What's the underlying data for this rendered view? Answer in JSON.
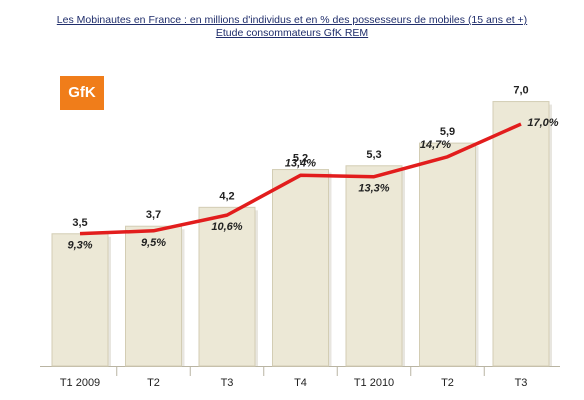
{
  "title_line1": "Les Mobinautes en France : en millions d'individus et en % des possesseurs de mobiles (15 ans et +)",
  "title_line2": "Etude consommateurs GfK REM",
  "logo_text": "GfK",
  "colors": {
    "bar_fill": "#ece8d6",
    "bar_edge": "#d3cdb4",
    "line": "#e21d1d",
    "logo_bg": "#f07d1a",
    "title": "#1f2d6b"
  },
  "chart_data": {
    "type": "bar",
    "categories": [
      "T1 2009",
      "T2",
      "T3",
      "T4",
      "T1 2010",
      "T2",
      "T3"
    ],
    "series": [
      {
        "values": [
          3.5,
          3.7,
          4.2,
          5.2,
          5.3,
          5.9,
          7.0
        ],
        "labels": [
          "3,5",
          "3,7",
          "4,2",
          "5,2",
          "5,3",
          "5,9",
          "7,0"
        ]
      },
      {
        "type": "line",
        "values": [
          9.3,
          9.5,
          10.6,
          13.4,
          13.3,
          14.7,
          17.0
        ],
        "labels": [
          "9,3%",
          "9,5%",
          "10,6%",
          "13,4%",
          "13,3%",
          "14,7%",
          "17,0%"
        ]
      }
    ],
    "bar_ylim": [
      0,
      8.1
    ],
    "line_ylim": [
      0,
      21.5
    ],
    "grid": false,
    "legend": "none"
  }
}
